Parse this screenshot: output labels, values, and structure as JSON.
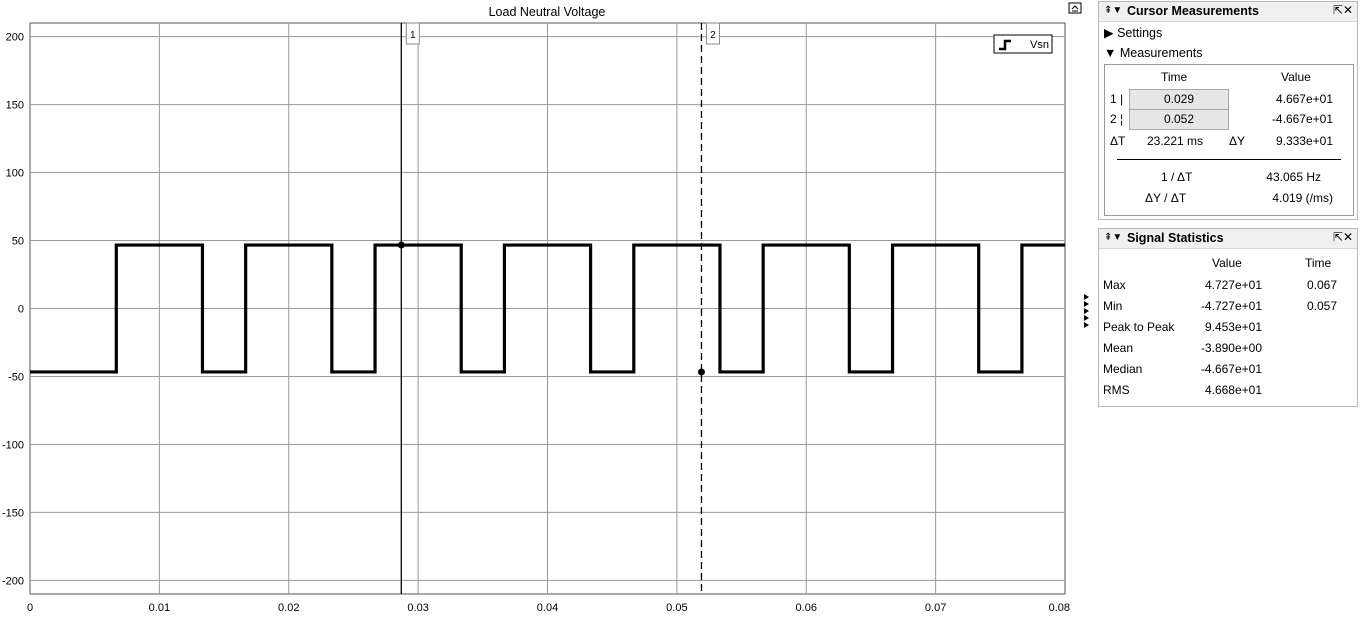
{
  "chart_data": {
    "type": "line",
    "title": "Load Neutral Voltage",
    "xlim": [
      0,
      0.08
    ],
    "ylim": [
      -210,
      210
    ],
    "xticks": [
      0,
      0.01,
      0.02,
      0.03,
      0.04,
      0.05,
      0.06,
      0.07,
      0.08
    ],
    "xtick_labels": [
      "0",
      "0.01",
      "0.02",
      "0.03",
      "0.04",
      "0.05",
      "0.06",
      "0.07",
      "0.08"
    ],
    "yticks": [
      200,
      150,
      100,
      50,
      0,
      -50,
      -100,
      -150,
      -200
    ],
    "ytick_labels": [
      "200",
      "150",
      "100",
      "50",
      "0",
      "-50",
      "-100",
      "-150",
      "-200"
    ],
    "grid": true,
    "legend": {
      "label": "Vsn",
      "placement": "top-right"
    },
    "series": [
      {
        "name": "Vsn",
        "high": 46.67,
        "low": -46.67,
        "edges": [
          0.00667,
          0.01333,
          0.01667,
          0.02333,
          0.02667,
          0.03333,
          0.03667,
          0.04333,
          0.04667,
          0.05333,
          0.05667,
          0.06333,
          0.06667,
          0.07333,
          0.07667
        ],
        "x_end": 0.08
      }
    ],
    "cursors": [
      {
        "label": "1",
        "time": 0.0287,
        "value": 46.67,
        "style": "solid"
      },
      {
        "label": "2",
        "time": 0.0519,
        "value": -46.67,
        "style": "dashed"
      }
    ]
  },
  "cursor_panel": {
    "title": "Cursor Measurements",
    "settings_label": "Settings",
    "measurements_label": "Measurements",
    "col_time": "Time",
    "col_value": "Value",
    "rows": [
      {
        "label": "1",
        "time": "0.029",
        "value": "4.667e+01"
      },
      {
        "label": "2",
        "time": "0.052",
        "value": "-4.667e+01"
      }
    ],
    "dt_label": "ΔT",
    "dt_value": "23.221 ms",
    "dy_label": "ΔY",
    "dy_value": "9.333e+01",
    "inv_dt_label": "1 / ΔT",
    "inv_dt_value": "43.065 Hz",
    "dydt_label": "ΔY / ΔT",
    "dydt_value": "4.019 (/ms)"
  },
  "stats_panel": {
    "title": "Signal Statistics",
    "col_value": "Value",
    "col_time": "Time",
    "rows": [
      {
        "label": "Max",
        "value": "4.727e+01",
        "time": "0.067"
      },
      {
        "label": "Min",
        "value": "-4.727e+01",
        "time": "0.057"
      },
      {
        "label": "Peak to Peak",
        "value": "9.453e+01",
        "time": ""
      },
      {
        "label": "Mean",
        "value": "-3.890e+00",
        "time": ""
      },
      {
        "label": "Median",
        "value": "-4.667e+01",
        "time": ""
      },
      {
        "label": "RMS",
        "value": "4.668e+01",
        "time": ""
      }
    ]
  }
}
